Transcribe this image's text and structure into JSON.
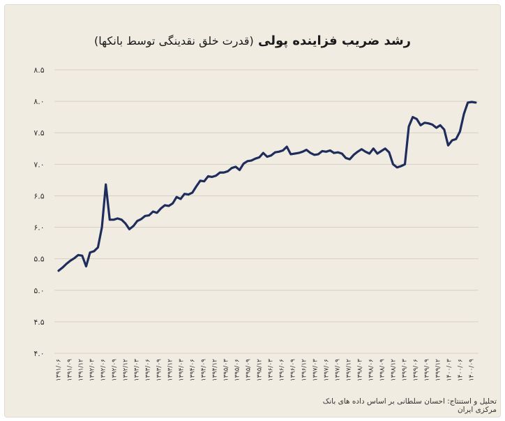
{
  "title": "رشد ضریب فزاینده پولی",
  "subtitle": "(قدرت خلق نقدینگی توسط بانکها)",
  "source": "تحلیل و استنتاج: احسان سلطانی بر اساس داده های بانک مرکزی ایران",
  "colors": {
    "line": "#1f2d5c",
    "grid": "#d6d0c4",
    "background": "#f1ece2"
  },
  "chart_data": {
    "type": "line",
    "title": "رشد ضریب فزاینده پولی (قدرت خلق نقدینگی توسط بانکها)",
    "xlabel": "",
    "ylabel": "",
    "ylim": [
      4.0,
      8.5
    ],
    "grid": true,
    "yticks": [
      "۴.۰",
      "۴.۵",
      "۵.۰",
      "۵.۵",
      "۶.۰",
      "۶.۵",
      "۷.۰",
      "۷.۵",
      "۸.۰",
      "۸.۵"
    ],
    "xticks": [
      "۱۳۹۱/۰۶",
      "۱۳۹۱/۰۹",
      "۱۳۹۱/۱۲",
      "۱۳۹۲/۰۳",
      "۱۳۹۲/۰۶",
      "۱۳۹۲/۰۹",
      "۱۳۹۲/۱۲",
      "۱۳۹۳/۰۳",
      "۱۳۹۳/۰۶",
      "۱۳۹۳/۰۹",
      "۱۳۹۳/۱۲",
      "۱۳۹۴/۰۳",
      "۱۳۹۴/۰۶",
      "۱۳۹۴/۰۹",
      "۱۳۹۴/۱۲",
      "۱۳۹۵/۰۳",
      "۱۳۹۵/۰۶",
      "۱۳۹۵/۰۹",
      "۱۳۹۵/۱۲",
      "۱۳۹۶/۰۳",
      "۱۳۹۶/۰۶",
      "۱۳۹۶/۰۹",
      "۱۳۹۶/۱۲",
      "۱۳۹۷/۰۳",
      "۱۳۹۷/۰۶",
      "۱۳۹۷/۰۹",
      "۱۳۹۷/۱۲",
      "۱۳۹۸/۰۳",
      "۱۳۹۸/۰۶",
      "۱۳۹۸/۰۹",
      "۱۳۹۸/۱۲",
      "۱۳۹۹/۰۳",
      "۱۳۹۹/۰۶",
      "۱۳۹۹/۰۹",
      "۱۳۹۹/۱۲",
      "۱۴۰۰/۰۳",
      "۱۴۰۰/۰۶",
      "۱۴۰۰/۰۹"
    ],
    "values": [
      5.31,
      5.36,
      5.42,
      5.47,
      5.51,
      5.56,
      5.55,
      5.38,
      5.6,
      5.62,
      5.68,
      6.0,
      6.68,
      6.12,
      6.12,
      6.14,
      6.12,
      6.06,
      5.97,
      6.02,
      6.1,
      6.13,
      6.18,
      6.19,
      6.25,
      6.23,
      6.3,
      6.35,
      6.34,
      6.38,
      6.48,
      6.45,
      6.53,
      6.52,
      6.55,
      6.65,
      6.74,
      6.73,
      6.81,
      6.8,
      6.82,
      6.87,
      6.87,
      6.89,
      6.94,
      6.96,
      6.91,
      7.01,
      7.05,
      7.06,
      7.09,
      7.11,
      7.18,
      7.12,
      7.14,
      7.19,
      7.2,
      7.22,
      7.28,
      7.16,
      7.17,
      7.18,
      7.2,
      7.23,
      7.18,
      7.15,
      7.16,
      7.21,
      7.2,
      7.22,
      7.18,
      7.19,
      7.17,
      7.1,
      7.08,
      7.15,
      7.2,
      7.24,
      7.2,
      7.17,
      7.25,
      7.17,
      7.21,
      7.25,
      7.19,
      7.0,
      6.95,
      6.97,
      7.0,
      7.6,
      7.75,
      7.72,
      7.62,
      7.66,
      7.65,
      7.63,
      7.58,
      7.62,
      7.55,
      7.3,
      7.38,
      7.4,
      7.52,
      7.8,
      7.98,
      7.99,
      7.98
    ]
  }
}
